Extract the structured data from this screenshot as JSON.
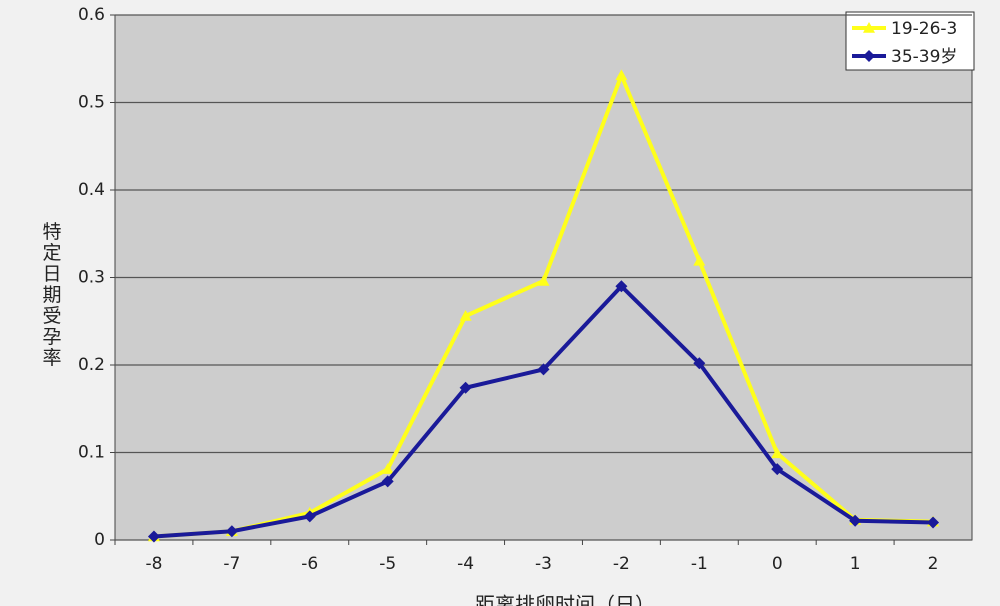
{
  "chart_data": {
    "type": "line",
    "y_label": "特定日期受孕率",
    "x_label": "距离排卵时间（日）",
    "categories": [
      "-8",
      "-7",
      "-6",
      "-5",
      "-4",
      "-3",
      "-2",
      "-1",
      "0",
      "1",
      "2"
    ],
    "series": [
      {
        "name": "19-26-3",
        "color": "#ffff1a",
        "marker": "triangle",
        "values": [
          0.004,
          0.01,
          0.031,
          0.081,
          0.256,
          0.296,
          0.531,
          0.319,
          0.099,
          0.023,
          0.021
        ]
      },
      {
        "name": "35-39岁",
        "color": "#1a1a99",
        "marker": "diamond",
        "values": [
          0.004,
          0.01,
          0.027,
          0.067,
          0.174,
          0.195,
          0.29,
          0.202,
          0.081,
          0.022,
          0.02
        ]
      }
    ],
    "ylim": [
      0,
      0.6
    ],
    "yticks": [
      0,
      0.1,
      0.2,
      0.3,
      0.4,
      0.5,
      0.6
    ],
    "grid": true,
    "legend": "top-right"
  }
}
